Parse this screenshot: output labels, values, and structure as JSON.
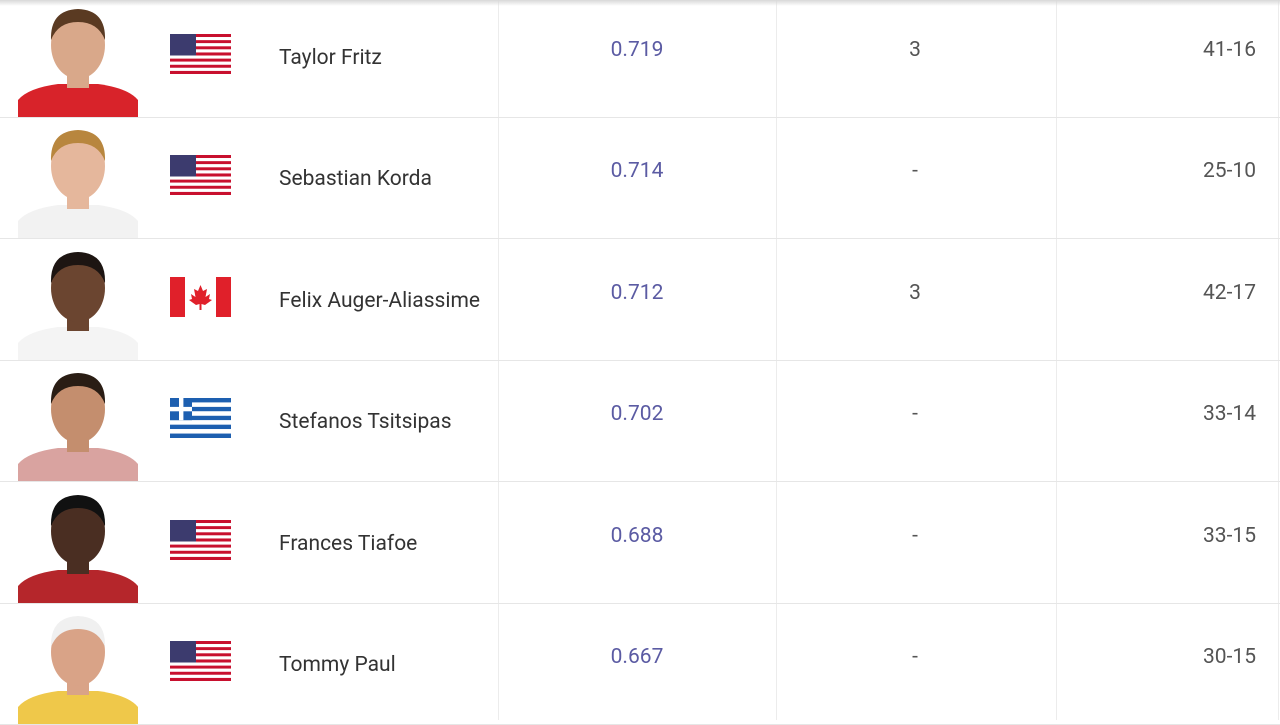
{
  "table": {
    "rows": [
      {
        "name": "Taylor Fritz",
        "value": "0.719",
        "titles": "3",
        "record": "41-16"
      },
      {
        "name": "Sebastian Korda",
        "value": "0.714",
        "titles": "-",
        "record": "25-10"
      },
      {
        "name": "Felix Auger-Aliassime",
        "value": "0.712",
        "titles": "3",
        "record": "42-17"
      },
      {
        "name": "Stefanos Tsitsipas",
        "value": "0.702",
        "titles": "-",
        "record": "33-14"
      },
      {
        "name": "Frances Tiafoe",
        "value": "0.688",
        "titles": "-",
        "record": "33-15"
      },
      {
        "name": "Tommy Paul",
        "value": "0.667",
        "titles": "-",
        "record": "30-15"
      }
    ]
  }
}
